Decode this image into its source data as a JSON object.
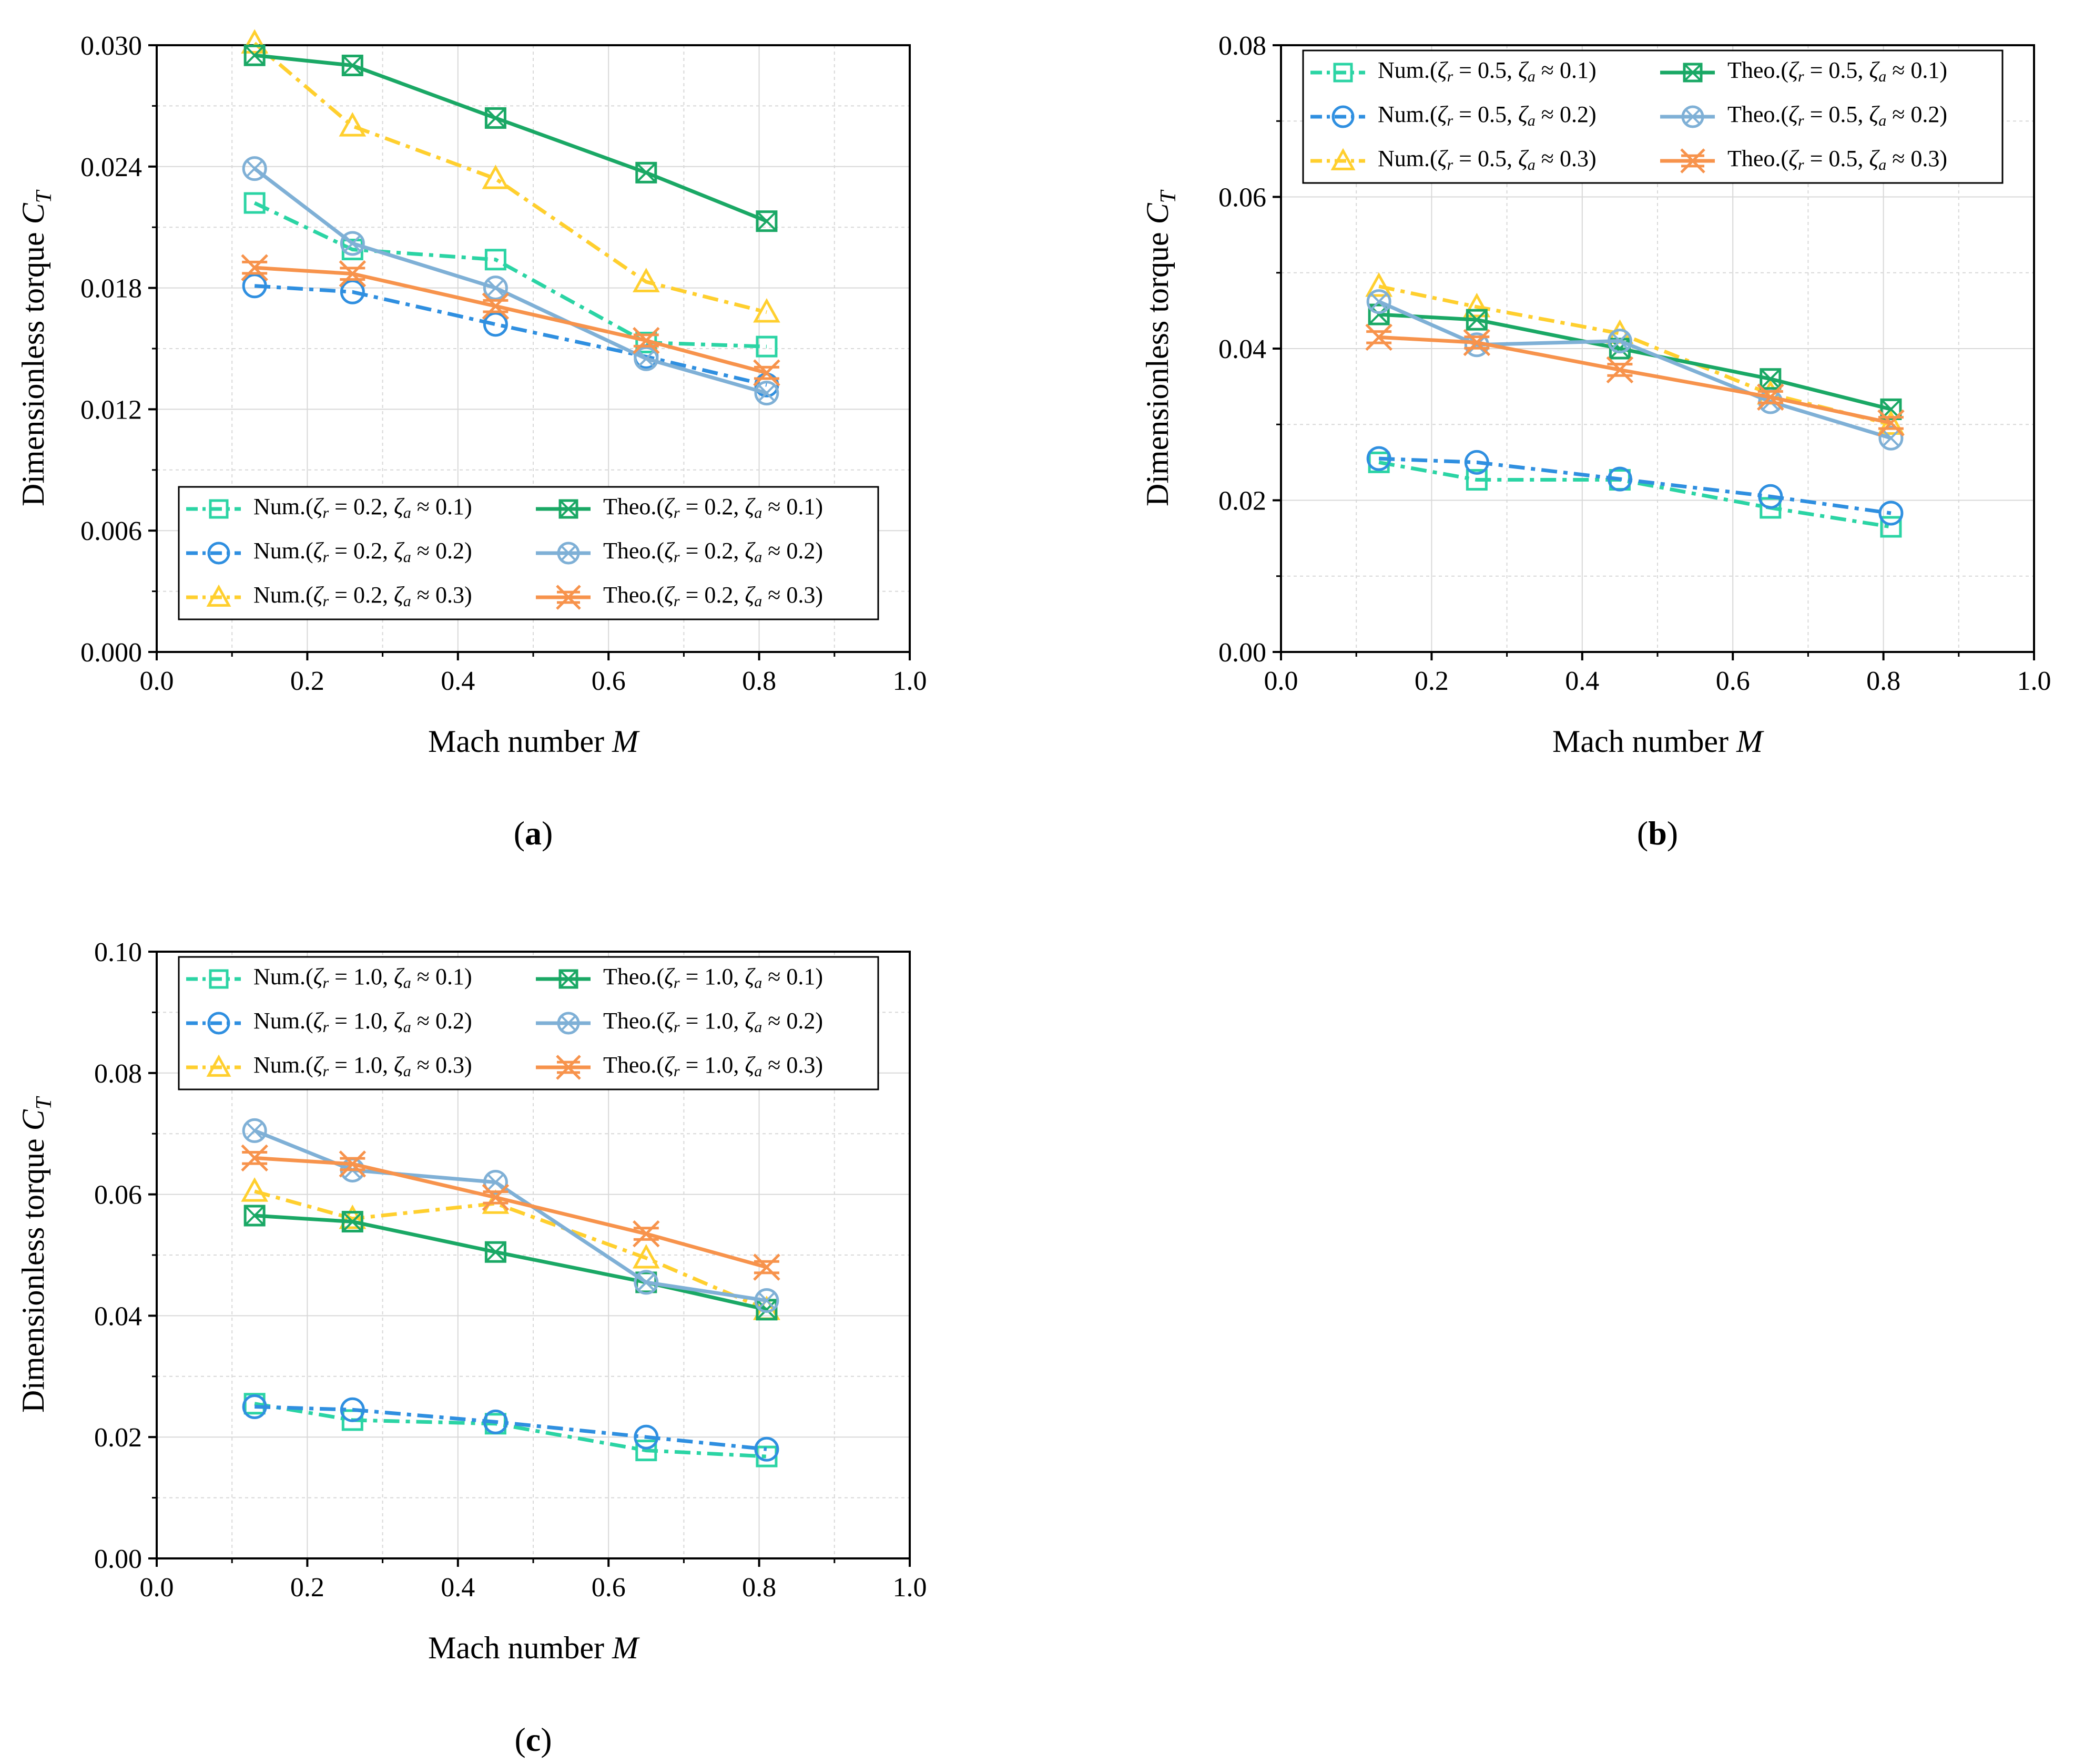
{
  "figure": {
    "captions": [
      "(a)",
      "(b)",
      "(c)"
    ]
  },
  "chart_data": [
    {
      "type": "line",
      "panel": "a",
      "caption": "(a)",
      "xlabel": "Mach number M",
      "ylabel": "Dimensionless torque C_T",
      "xlim": [
        0.0,
        1.0
      ],
      "ylim": [
        0.0,
        0.03
      ],
      "xticks": [
        "0.0",
        "0.2",
        "0.4",
        "0.6",
        "0.8",
        "1.0"
      ],
      "yticks": [
        "0.000",
        "0.006",
        "0.012",
        "0.018",
        "0.024",
        "0.030"
      ],
      "grid": true,
      "legend_position": "bottom",
      "x": [
        0.13,
        0.26,
        0.45,
        0.65,
        0.81
      ],
      "series": [
        {
          "name": "Num.(ζr = 0.2, ζa ≈ 0.1)",
          "kind": "num",
          "marker": "square",
          "color": "#2bd4a4",
          "values": [
            0.0222,
            0.0199,
            0.0194,
            0.0153,
            0.0151
          ]
        },
        {
          "name": "Num.(ζr = 0.2, ζa ≈ 0.2)",
          "kind": "num",
          "marker": "circle",
          "color": "#2f8fe0",
          "values": [
            0.0181,
            0.0178,
            0.0162,
            0.0146,
            0.0132
          ]
        },
        {
          "name": "Num.(ζr = 0.2, ζa ≈ 0.3)",
          "kind": "num",
          "marker": "triangle",
          "color": "#ffcf2e",
          "values": [
            0.0301,
            0.026,
            0.0234,
            0.0183,
            0.0168
          ]
        },
        {
          "name": "Theo.(ζr = 0.2, ζa ≈ 0.1)",
          "kind": "theo",
          "marker": "square-x",
          "color": "#1aa865",
          "values": [
            0.0295,
            0.029,
            0.0264,
            0.0237,
            0.0213
          ]
        },
        {
          "name": "Theo.(ζr = 0.2, ζa ≈ 0.2)",
          "kind": "theo",
          "marker": "circle-x",
          "color": "#7fb0d6",
          "values": [
            0.0239,
            0.0202,
            0.018,
            0.0145,
            0.0128
          ]
        },
        {
          "name": "Theo.(ζr = 0.2, ζa ≈ 0.3)",
          "kind": "theo",
          "marker": "asterisk",
          "color": "#f7934c",
          "values": [
            0.019,
            0.0187,
            0.0171,
            0.0154,
            0.0138
          ]
        }
      ]
    },
    {
      "type": "line",
      "panel": "b",
      "caption": "(b)",
      "xlabel": "Mach number M",
      "ylabel": "Dimensionless torque C_T",
      "xlim": [
        0.0,
        1.0
      ],
      "ylim": [
        0.0,
        0.08
      ],
      "xticks": [
        "0.0",
        "0.2",
        "0.4",
        "0.6",
        "0.8",
        "1.0"
      ],
      "yticks": [
        "0.00",
        "0.02",
        "0.04",
        "0.06",
        "0.08"
      ],
      "grid": true,
      "legend_position": "top",
      "x": [
        0.13,
        0.26,
        0.45,
        0.65,
        0.81
      ],
      "series": [
        {
          "name": "Num.(ζr = 0.5, ζa ≈ 0.1)",
          "kind": "num",
          "marker": "square",
          "color": "#2bd4a4",
          "values": [
            0.025,
            0.0227,
            0.0227,
            0.019,
            0.0165
          ]
        },
        {
          "name": "Num.(ζr = 0.5, ζa ≈ 0.2)",
          "kind": "num",
          "marker": "circle",
          "color": "#2f8fe0",
          "values": [
            0.0255,
            0.025,
            0.0228,
            0.0205,
            0.0183
          ]
        },
        {
          "name": "Num.(ζr = 0.5, ζa ≈ 0.3)",
          "kind": "num",
          "marker": "triangle",
          "color": "#ffcf2e",
          "values": [
            0.0482,
            0.0455,
            0.042,
            0.034,
            0.03
          ]
        },
        {
          "name": "Theo.(ζr = 0.5, ζa ≈ 0.1)",
          "kind": "theo",
          "marker": "square-x",
          "color": "#1aa865",
          "values": [
            0.0445,
            0.0438,
            0.04,
            0.036,
            0.032
          ]
        },
        {
          "name": "Theo.(ζr = 0.5, ζa ≈ 0.2)",
          "kind": "theo",
          "marker": "circle-x",
          "color": "#7fb0d6",
          "values": [
            0.0462,
            0.0405,
            0.041,
            0.033,
            0.0282
          ]
        },
        {
          "name": "Theo.(ζr = 0.5, ζa ≈ 0.3)",
          "kind": "theo",
          "marker": "asterisk",
          "color": "#f7934c",
          "values": [
            0.0415,
            0.0408,
            0.0372,
            0.0336,
            0.0302
          ]
        }
      ]
    },
    {
      "type": "line",
      "panel": "c",
      "caption": "(c)",
      "xlabel": "Mach number M",
      "ylabel": "Dimensionless torque C_T",
      "xlim": [
        0.0,
        1.0
      ],
      "ylim": [
        0.0,
        0.1
      ],
      "xticks": [
        "0.0",
        "0.2",
        "0.4",
        "0.6",
        "0.8",
        "1.0"
      ],
      "yticks": [
        "0.00",
        "0.02",
        "0.04",
        "0.06",
        "0.08",
        "0.10"
      ],
      "grid": true,
      "legend_position": "top",
      "x": [
        0.13,
        0.26,
        0.45,
        0.65,
        0.81
      ],
      "series": [
        {
          "name": "Num.(ζr = 1.0, ζa ≈ 0.1)",
          "kind": "num",
          "marker": "square",
          "color": "#2bd4a4",
          "values": [
            0.0255,
            0.0228,
            0.0222,
            0.0178,
            0.0168
          ]
        },
        {
          "name": "Num.(ζr = 1.0, ζa ≈ 0.2)",
          "kind": "num",
          "marker": "circle",
          "color": "#2f8fe0",
          "values": [
            0.025,
            0.0245,
            0.0225,
            0.02,
            0.018
          ]
        },
        {
          "name": "Num.(ζr = 1.0, ζa ≈ 0.3)",
          "kind": "num",
          "marker": "triangle",
          "color": "#ffcf2e",
          "values": [
            0.0605,
            0.056,
            0.0585,
            0.0495,
            0.041
          ]
        },
        {
          "name": "Theo.(ζr = 1.0, ζa ≈ 0.1)",
          "kind": "theo",
          "marker": "square-x",
          "color": "#1aa865",
          "values": [
            0.0565,
            0.0555,
            0.0505,
            0.0455,
            0.041
          ]
        },
        {
          "name": "Theo.(ζr = 1.0, ζa ≈ 0.2)",
          "kind": "theo",
          "marker": "circle-x",
          "color": "#7fb0d6",
          "values": [
            0.0705,
            0.064,
            0.062,
            0.0455,
            0.0425
          ]
        },
        {
          "name": "Theo.(ζr = 1.0, ζa ≈ 0.3)",
          "kind": "theo",
          "marker": "asterisk",
          "color": "#f7934c",
          "values": [
            0.066,
            0.065,
            0.0595,
            0.0535,
            0.048
          ]
        }
      ]
    }
  ]
}
